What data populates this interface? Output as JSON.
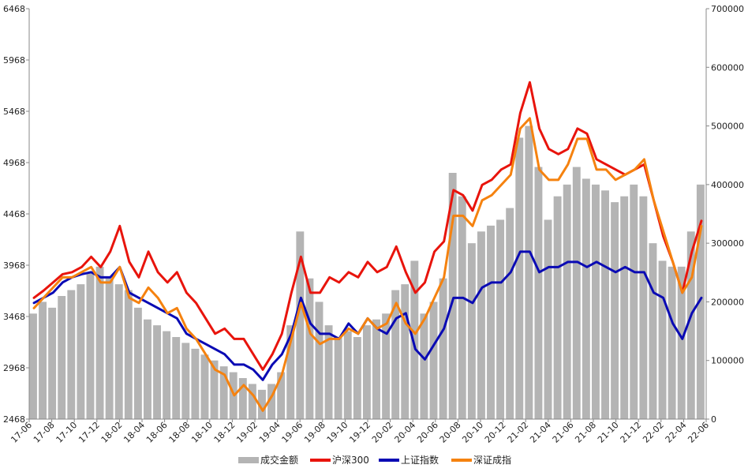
{
  "chart_data": {
    "type": "line",
    "title": "",
    "left_axis": {
      "range": [
        2468,
        6468
      ],
      "ticks": [
        "2468",
        "2968",
        "3468",
        "3968",
        "4468",
        "4968",
        "5468",
        "5968",
        "6468"
      ]
    },
    "right_axis": {
      "range": [
        0,
        700000
      ],
      "ticks": [
        "0",
        "100000",
        "200000",
        "300000",
        "400000",
        "500000",
        "600000",
        "700000"
      ]
    },
    "x_ticks": [
      "17-06",
      "17-08",
      "17-10",
      "17-12",
      "18-02",
      "18-04",
      "18-06",
      "18-08",
      "18-10",
      "18-12",
      "19-02",
      "19-04",
      "19-06",
      "19-08",
      "19-10",
      "19-12",
      "20-02",
      "20-04",
      "20-06",
      "20-08",
      "20-10",
      "20-12",
      "21-02",
      "21-04",
      "21-06",
      "21-08",
      "21-10",
      "21-12",
      "22-02",
      "22-04",
      "22-06"
    ],
    "legend": [
      "成交金额",
      "沪深300",
      "上证指数",
      "深证成指"
    ],
    "colors": {
      "volume": "#b4b4b4",
      "hs300": "#e8140c",
      "sh": "#0a0ab4",
      "sz": "#f5820f"
    },
    "series": [
      {
        "name": "沪深300",
        "axis": "left",
        "values": [
          3650,
          3720,
          3800,
          3880,
          3900,
          3950,
          4050,
          3950,
          4100,
          4350,
          4000,
          3850,
          4100,
          3900,
          3800,
          3900,
          3700,
          3600,
          3450,
          3300,
          3350,
          3250,
          3250,
          3100,
          2950,
          3100,
          3300,
          3700,
          4050,
          3700,
          3700,
          3850,
          3800,
          3900,
          3850,
          4000,
          3900,
          3950,
          4150,
          3900,
          3700,
          3800,
          4100,
          4200,
          4700,
          4650,
          4500,
          4750,
          4800,
          4900,
          4950,
          5450,
          5750,
          5300,
          5100,
          5050,
          5100,
          5300,
          5250,
          5000,
          4950,
          4900,
          4850,
          4900,
          4950,
          4600,
          4250,
          4000,
          3700,
          4100,
          4400
        ]
      },
      {
        "name": "上证指数",
        "axis": "left",
        "values": [
          3600,
          3650,
          3700,
          3800,
          3850,
          3880,
          3900,
          3850,
          3850,
          3950,
          3700,
          3650,
          3600,
          3550,
          3500,
          3450,
          3300,
          3250,
          3200,
          3150,
          3100,
          3000,
          3000,
          2950,
          2850,
          3000,
          3100,
          3300,
          3650,
          3400,
          3300,
          3300,
          3250,
          3400,
          3300,
          3450,
          3350,
          3300,
          3450,
          3500,
          3150,
          3050,
          3200,
          3350,
          3650,
          3650,
          3600,
          3750,
          3800,
          3800,
          3900,
          4100,
          4100,
          3900,
          3950,
          3950,
          4000,
          4000,
          3950,
          4000,
          3950,
          3900,
          3950,
          3900,
          3900,
          3700,
          3650,
          3400,
          3250,
          3500,
          3650
        ]
      },
      {
        "name": "深证成指",
        "axis": "left",
        "values": [
          3550,
          3650,
          3750,
          3850,
          3850,
          3900,
          3950,
          3800,
          3800,
          3950,
          3650,
          3600,
          3750,
          3650,
          3500,
          3550,
          3350,
          3250,
          3100,
          2950,
          2900,
          2700,
          2800,
          2700,
          2550,
          2700,
          2900,
          3250,
          3600,
          3300,
          3200,
          3250,
          3250,
          3350,
          3300,
          3450,
          3350,
          3400,
          3600,
          3400,
          3300,
          3450,
          3650,
          3850,
          4450,
          4450,
          4350,
          4600,
          4650,
          4750,
          4850,
          5300,
          5400,
          4900,
          4800,
          4800,
          4950,
          5200,
          5200,
          4900,
          4900,
          4800,
          4850,
          4900,
          5000,
          4600,
          4300,
          4000,
          3700,
          3850,
          4350
        ]
      },
      {
        "name": "成交金额",
        "axis": "right",
        "values": [
          180000,
          200000,
          190000,
          210000,
          220000,
          230000,
          250000,
          260000,
          240000,
          230000,
          220000,
          190000,
          170000,
          160000,
          150000,
          140000,
          130000,
          120000,
          110000,
          100000,
          90000,
          80000,
          70000,
          60000,
          50000,
          60000,
          80000,
          160000,
          320000,
          240000,
          200000,
          160000,
          140000,
          150000,
          140000,
          160000,
          170000,
          180000,
          220000,
          230000,
          270000,
          180000,
          200000,
          240000,
          420000,
          380000,
          300000,
          320000,
          330000,
          340000,
          360000,
          480000,
          500000,
          430000,
          340000,
          380000,
          400000,
          430000,
          410000,
          400000,
          390000,
          370000,
          380000,
          400000,
          380000,
          300000,
          270000,
          260000,
          260000,
          320000,
          400000
        ]
      }
    ]
  }
}
